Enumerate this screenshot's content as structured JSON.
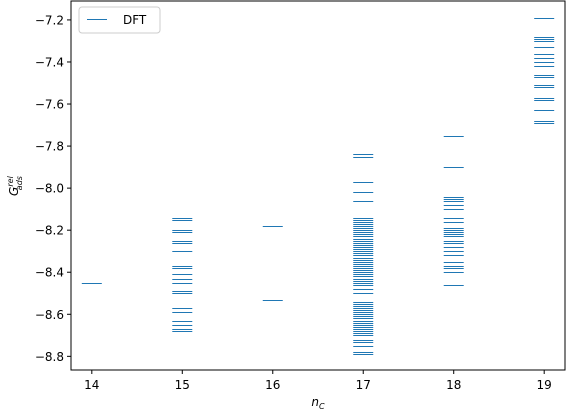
{
  "chart_data": {
    "type": "scatter",
    "marker": "horizontal-dash",
    "title": "",
    "xlabel_main": "n",
    "xlabel_sub": "C",
    "ylabel_main": "G",
    "ylabel_sup": "rel",
    "ylabel_sub": "ads",
    "xlim": [
      13.77,
      19.23
    ],
    "ylim": [
      -8.865,
      -7.11
    ],
    "x_ticks": [
      14,
      15,
      16,
      17,
      18,
      19
    ],
    "y_ticks": [
      -8.8,
      -8.6,
      -8.4,
      -8.2,
      -8.0,
      -7.8,
      -7.6,
      -7.4,
      -7.2
    ],
    "y_tick_labels": [
      "−8.8",
      "−8.6",
      "−8.4",
      "−8.2",
      "−8.0",
      "−7.8",
      "−7.6",
      "−7.4",
      "−7.2"
    ],
    "grid": false,
    "legend_position": "top-left",
    "series": [
      {
        "name": "DFT",
        "color": "#1f77b4",
        "points": [
          {
            "x": 14,
            "y": [
              -8.45
            ]
          },
          {
            "x": 15,
            "y": [
              -8.14,
              -8.15,
              -8.2,
              -8.21,
              -8.25,
              -8.26,
              -8.3,
              -8.37,
              -8.38,
              -8.41,
              -8.43,
              -8.45,
              -8.49,
              -8.5,
              -8.57,
              -8.59,
              -8.63,
              -8.65,
              -8.67,
              -8.68
            ]
          },
          {
            "x": 16,
            "y": [
              -8.18,
              -8.53
            ]
          },
          {
            "x": 17,
            "y": [
              -7.84,
              -7.85,
              -7.97,
              -8.02,
              -8.06,
              -8.14,
              -8.15,
              -8.16,
              -8.17,
              -8.18,
              -8.19,
              -8.2,
              -8.21,
              -8.22,
              -8.23,
              -8.24,
              -8.25,
              -8.26,
              -8.27,
              -8.28,
              -8.29,
              -8.3,
              -8.31,
              -8.32,
              -8.33,
              -8.34,
              -8.35,
              -8.36,
              -8.37,
              -8.38,
              -8.39,
              -8.4,
              -8.41,
              -8.42,
              -8.43,
              -8.44,
              -8.45,
              -8.46,
              -8.48,
              -8.5,
              -8.54,
              -8.55,
              -8.56,
              -8.57,
              -8.58,
              -8.59,
              -8.6,
              -8.61,
              -8.62,
              -8.63,
              -8.64,
              -8.65,
              -8.66,
              -8.67,
              -8.68,
              -8.69,
              -8.7,
              -8.72,
              -8.73,
              -8.75,
              -8.78,
              -8.79
            ]
          },
          {
            "x": 18,
            "y": [
              -7.75,
              -7.9,
              -8.04,
              -8.05,
              -8.06,
              -8.08,
              -8.1,
              -8.14,
              -8.16,
              -8.19,
              -8.2,
              -8.21,
              -8.22,
              -8.23,
              -8.25,
              -8.26,
              -8.28,
              -8.3,
              -8.32,
              -8.35,
              -8.37,
              -8.38,
              -8.4,
              -8.46
            ]
          },
          {
            "x": 19,
            "y": [
              -7.19,
              -7.28,
              -7.29,
              -7.3,
              -7.33,
              -7.36,
              -7.38,
              -7.4,
              -7.42,
              -7.46,
              -7.47,
              -7.51,
              -7.52,
              -7.57,
              -7.58,
              -7.63,
              -7.68,
              -7.69
            ]
          }
        ]
      }
    ]
  }
}
